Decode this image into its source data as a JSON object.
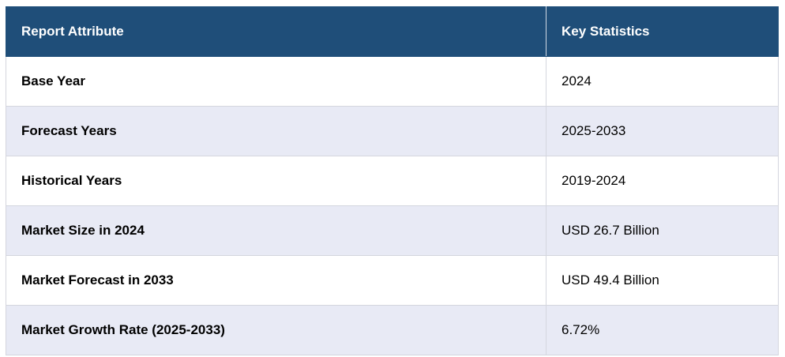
{
  "table": {
    "headers": [
      "Report Attribute",
      "Key Statistics"
    ],
    "rows": [
      {
        "attribute": "Base Year",
        "value": "2024"
      },
      {
        "attribute": "Forecast Years",
        "value": "2025-2033"
      },
      {
        "attribute": "Historical Years",
        "value": "2019-2024"
      },
      {
        "attribute": "Market Size in 2024",
        "value": "USD 26.7 Billion"
      },
      {
        "attribute": "Market Forecast in 2033",
        "value": "USD 49.4 Billion"
      },
      {
        "attribute": "Market Growth Rate (2025-2033)",
        "value": "6.72%"
      }
    ]
  },
  "colors": {
    "header_bg": "#1f4e79",
    "header_text": "#ffffff",
    "row_alt_bg": "#e8eaf5",
    "row_bg": "#ffffff"
  }
}
